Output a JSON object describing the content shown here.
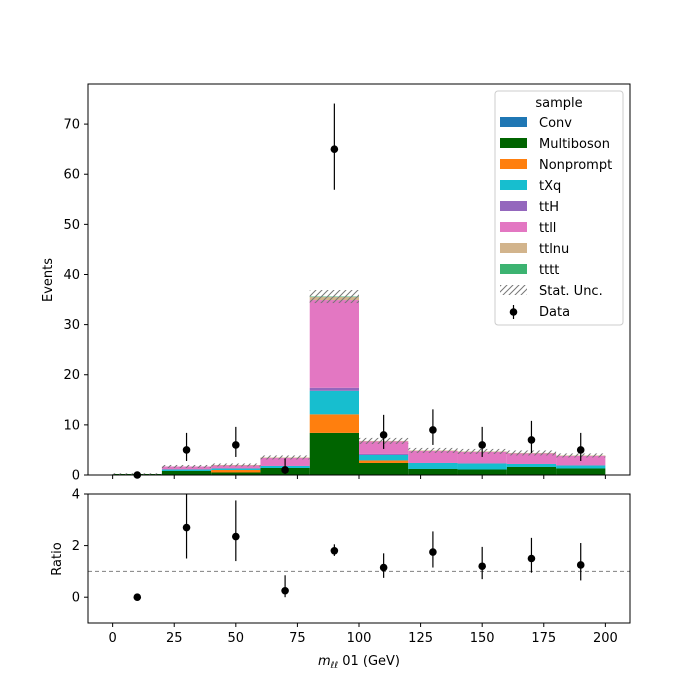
{
  "chart_data": {
    "type": "bar",
    "stacked": true,
    "bin_edges": [
      0,
      20,
      40,
      60,
      80,
      100,
      120,
      140,
      160,
      180,
      200
    ],
    "x": [
      10,
      30,
      50,
      70,
      90,
      110,
      130,
      150,
      170,
      190
    ],
    "series": [
      {
        "name": "Conv",
        "color": "#1f77b4",
        "values": [
          0.0,
          0.0,
          0.0,
          0.0,
          0.1,
          0.0,
          0.0,
          0.0,
          0.0,
          0.0
        ]
      },
      {
        "name": "Multiboson",
        "color": "#006400",
        "values": [
          0.2,
          0.8,
          0.5,
          1.4,
          8.3,
          2.4,
          1.2,
          1.1,
          1.6,
          1.3
        ]
      },
      {
        "name": "Nonprompt",
        "color": "#ff7f0e",
        "values": [
          0.0,
          0.0,
          0.5,
          0.0,
          3.7,
          0.5,
          0.0,
          0.0,
          0.0,
          0.0
        ]
      },
      {
        "name": "tXq",
        "color": "#17becf",
        "values": [
          0.0,
          0.3,
          0.3,
          0.4,
          4.7,
          1.1,
          1.2,
          1.2,
          0.6,
          0.6
        ]
      },
      {
        "name": "ttH",
        "color": "#9467bd",
        "values": [
          0.0,
          0.0,
          0.0,
          0.0,
          0.6,
          0.2,
          0.0,
          0.0,
          0.0,
          0.0
        ]
      },
      {
        "name": "ttll",
        "color": "#e377c2",
        "values": [
          0.0,
          0.6,
          0.6,
          1.6,
          17.5,
          2.5,
          2.4,
          2.3,
          2.1,
          1.9
        ]
      },
      {
        "name": "ttlnu",
        "color": "#d2b48c",
        "values": [
          0.0,
          0.0,
          0.1,
          0.1,
          0.6,
          0.1,
          0.1,
          0.1,
          0.1,
          0.1
        ]
      },
      {
        "name": "tttt",
        "color": "#3cb371",
        "values": [
          0.0,
          0.0,
          0.0,
          0.0,
          0.1,
          0.0,
          0.0,
          0.0,
          0.0,
          0.0
        ]
      }
    ],
    "stat_unc": [
      0.15,
      0.3,
      0.3,
      0.4,
      1.3,
      0.6,
      0.5,
      0.5,
      0.5,
      0.4
    ],
    "data": {
      "name": "Data",
      "values": [
        0,
        5,
        6,
        1,
        65,
        8,
        9,
        6,
        7,
        5
      ],
      "err_low": [
        0,
        2.2,
        2.4,
        0.8,
        8.1,
        2.8,
        3.0,
        2.4,
        2.6,
        2.2
      ],
      "err_high": [
        0,
        3.4,
        3.6,
        2.3,
        9.1,
        4.0,
        4.1,
        3.6,
        3.8,
        3.4
      ]
    },
    "ratio": {
      "values": [
        0.0,
        2.7,
        2.35,
        0.25,
        1.8,
        1.15,
        1.75,
        1.2,
        1.5,
        1.25
      ],
      "err_low": [
        0.0,
        1.2,
        0.95,
        0.25,
        0.2,
        0.4,
        0.6,
        0.5,
        0.55,
        0.6
      ],
      "err_high": [
        0.0,
        1.4,
        1.4,
        0.6,
        0.25,
        0.55,
        0.8,
        0.75,
        0.8,
        0.85
      ],
      "reference_line": 1
    },
    "main_ylabel": "Events",
    "ratio_ylabel": "Ratio",
    "xlabel_main": "m",
    "xlabel_sub": "ℓℓ",
    "xlabel_rest": " 01 (GeV)",
    "xlim": [
      -10,
      210
    ],
    "main_ylim": [
      0,
      78
    ],
    "ratio_ylim": [
      -1,
      4
    ],
    "x_ticks": [
      0,
      25,
      50,
      75,
      100,
      125,
      150,
      175,
      200
    ],
    "main_y_ticks": [
      0,
      10,
      20,
      30,
      40,
      50,
      60,
      70
    ],
    "ratio_y_ticks": [
      0,
      2,
      4
    ],
    "legend": {
      "title": "sample",
      "placement": "top-right",
      "stat_unc_label": "Stat. Unc.",
      "data_label": "Data"
    },
    "grid": false
  }
}
